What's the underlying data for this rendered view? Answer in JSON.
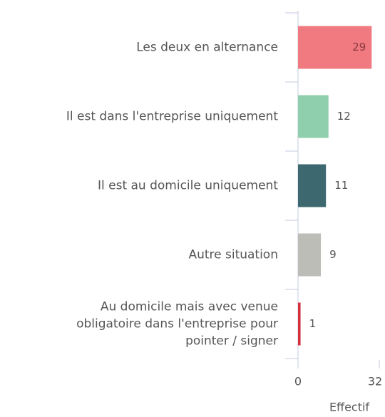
{
  "chart_data": {
    "type": "barh",
    "categories": [
      "Les deux en alternance",
      "Il est dans l'entreprise uniquement",
      "Il est au domicile uniquement",
      "Autre situation",
      "Au domicile mais avec venue obligatoire dans l'entreprise pour pointer / signer"
    ],
    "values": [
      29,
      12,
      11,
      9,
      1
    ],
    "colors": [
      "#f07a80",
      "#8fcfad",
      "#3d6870",
      "#bdbdb8",
      "#d6303d"
    ],
    "xlim": [
      0,
      32
    ],
    "xticks": [
      0,
      32
    ],
    "xlabel": "Effectif"
  }
}
